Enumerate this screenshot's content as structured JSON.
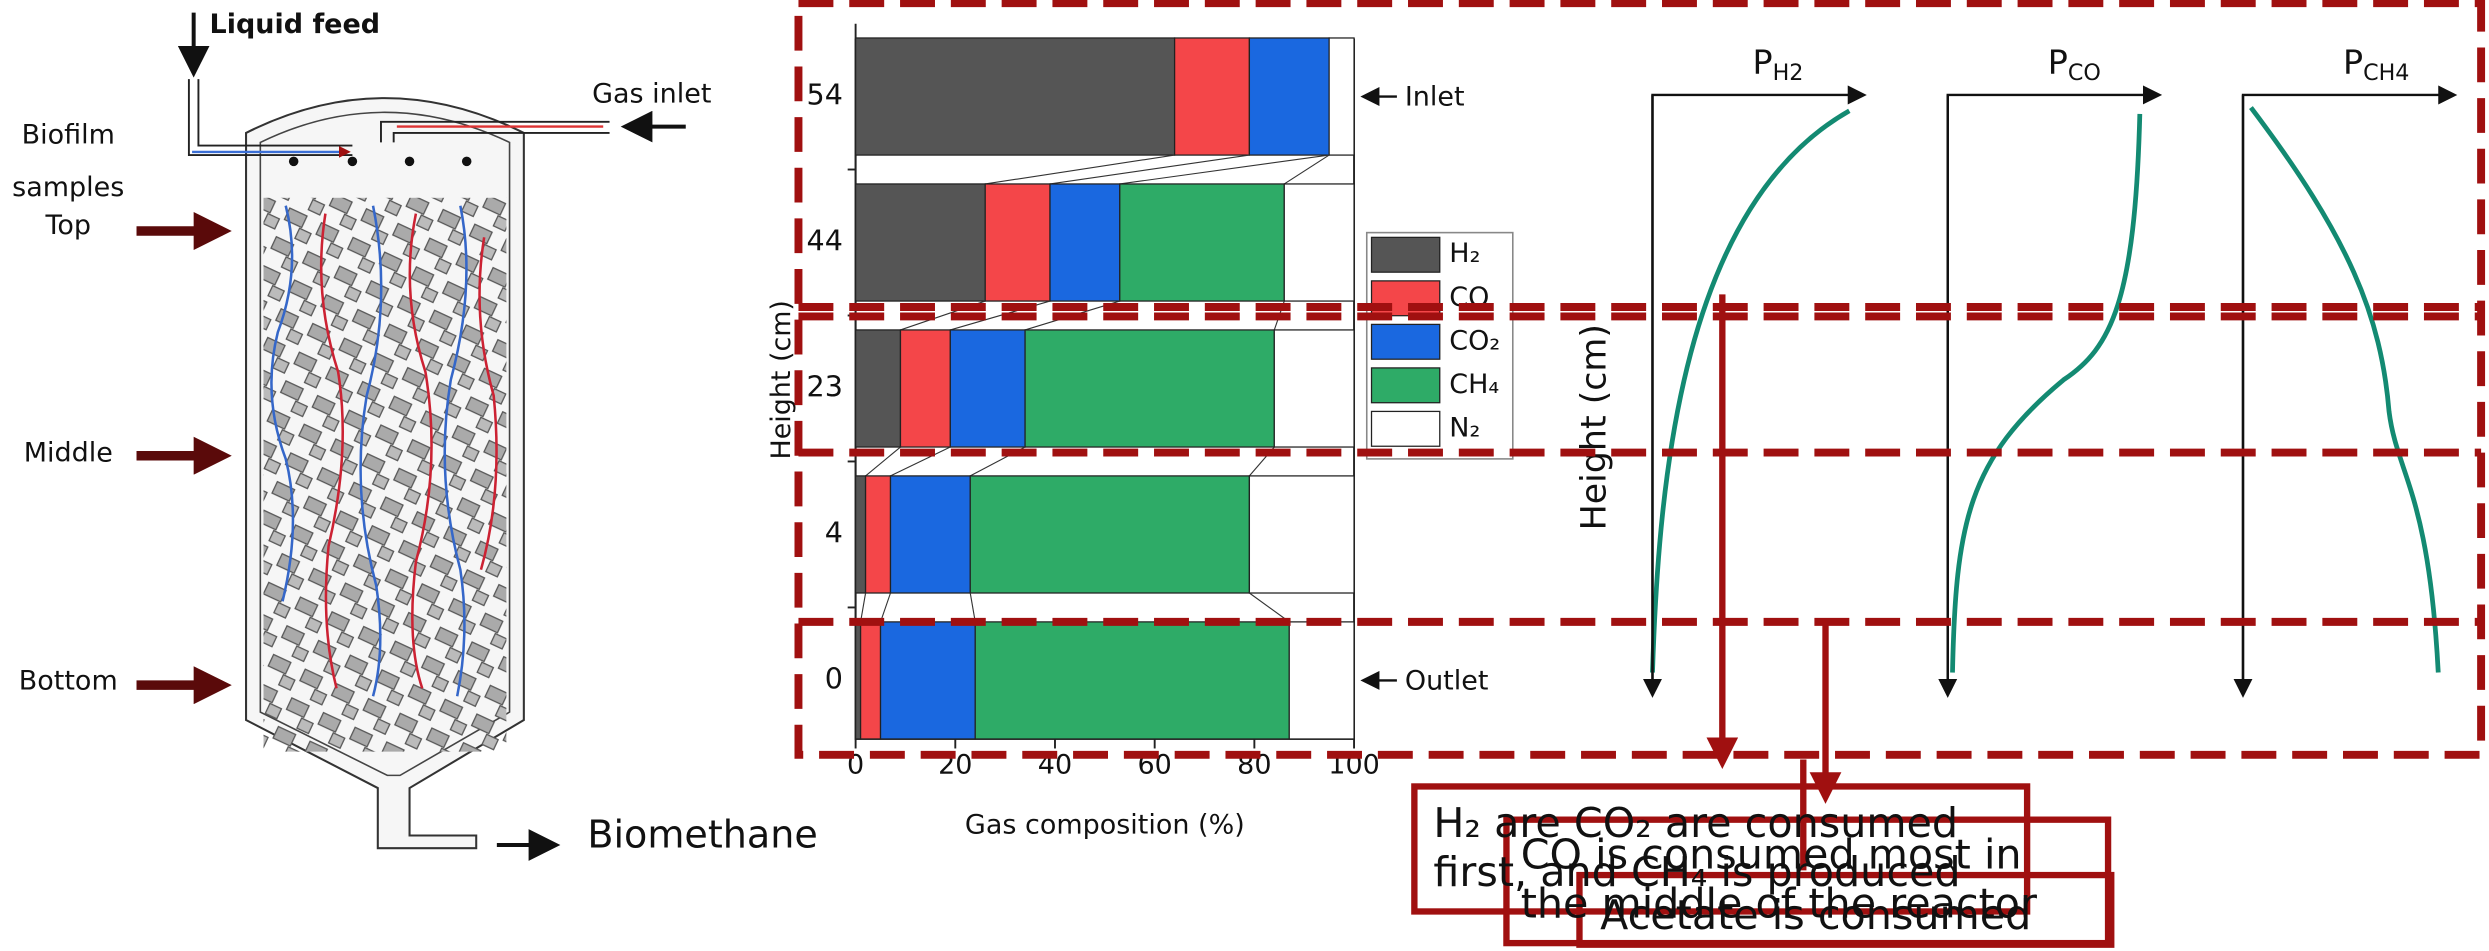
{
  "chart_data": {
    "type": "bar",
    "orientation": "horizontal",
    "stacked": true,
    "categories": [
      "54",
      "44",
      "23",
      "4",
      "0"
    ],
    "series": [
      {
        "name": "H₂",
        "color": "#555555",
        "values": [
          64,
          26,
          9,
          2,
          1
        ]
      },
      {
        "name": "CO",
        "color": "#f44649",
        "values": [
          15,
          13,
          10,
          5,
          4
        ]
      },
      {
        "name": "CO₂",
        "color": "#1a68e0",
        "values": [
          16,
          14,
          15,
          16,
          19
        ]
      },
      {
        "name": "CH₄",
        "color": "#2eab67",
        "values": [
          0,
          33,
          50,
          56,
          63
        ]
      },
      {
        "name": "N₂",
        "color": "#ffffff",
        "values": [
          5,
          14,
          16,
          21,
          13
        ]
      }
    ],
    "xlabel": "Gas composition (%)",
    "ylabel": "Height (cm)",
    "xlim": [
      0,
      100
    ],
    "xticks": [
      0,
      20,
      40,
      60,
      80,
      100
    ],
    "annotations": [
      "Inlet",
      "Outlet"
    ]
  },
  "diagram": {
    "reactor": {
      "liquid_feed": "Liquid feed",
      "gas_inlet": "Gas inlet",
      "biofilm": "Biofilm",
      "samples": "samples",
      "top": "Top",
      "middle": "Middle",
      "bottom": "Bottom",
      "biomethane": "Biomethane"
    },
    "profiles": [
      {
        "label": "P",
        "subscript": "H2"
      },
      {
        "label": "P",
        "subscript": "CO"
      },
      {
        "label": "P",
        "subscript": "CH4"
      }
    ],
    "profile_axis_label": "Height (cm)",
    "notes": [
      [
        "H₂ are CO₂ are consumed",
        "first, and CH₄ is produced"
      ],
      [
        "CO is consumed most in",
        "the middle of the reactor"
      ],
      [
        "Acetate is consumed"
      ]
    ]
  }
}
